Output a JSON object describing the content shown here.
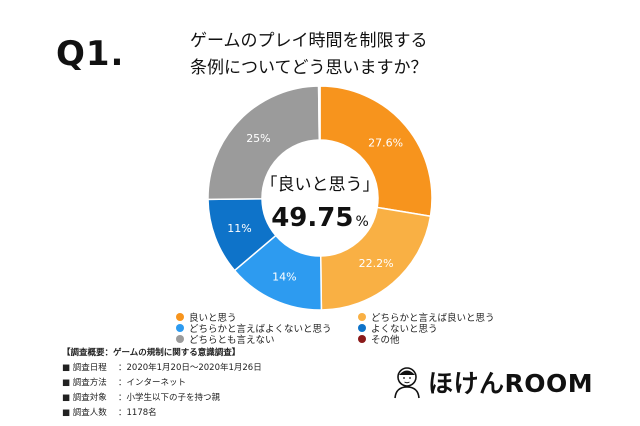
{
  "header": {
    "q_label": "Q1.",
    "question_line1": "ゲームのプレイ時間を制限する",
    "question_line2": "条例についてどう思いますか？"
  },
  "center": {
    "label": "「良いと思う」",
    "value": "49.75",
    "unit": "%"
  },
  "chart_data": {
    "type": "pie",
    "title": "ゲームのプレイ時間を制限する条例についてどう思いますか？",
    "slices": [
      {
        "name": "良いと思う",
        "value": 27.6,
        "label": "27.6%",
        "color": "#F7941D"
      },
      {
        "name": "どちらかと言えば良いと思う",
        "value": 22.2,
        "label": "22.2%",
        "color": "#F9B044"
      },
      {
        "name": "どちらかと言えばよくないと思う",
        "value": 14,
        "label": "14%",
        "color": "#2D9BF0"
      },
      {
        "name": "よくないと思う",
        "value": 11,
        "label": "11%",
        "color": "#0E73C9"
      },
      {
        "name": "どちらとも言えない",
        "value": 25,
        "label": "25%",
        "color": "#9B9B9B"
      },
      {
        "name": "その他",
        "value": 0.2,
        "label": "",
        "color": "#8B1A1A"
      }
    ]
  },
  "legend": {
    "items": [
      {
        "label": "良いと思う",
        "color": "#F7941D"
      },
      {
        "label": "どちらかと言えば良いと思う",
        "color": "#F9B044"
      },
      {
        "label": "どちらかと言えばよくないと思う",
        "color": "#2D9BF0"
      },
      {
        "label": "よくないと思う",
        "color": "#0E73C9"
      },
      {
        "label": "どちらとも言えない",
        "color": "#9B9B9B"
      },
      {
        "label": "その他",
        "color": "#8B1A1A"
      }
    ]
  },
  "survey": {
    "title": "【調査概要：ゲームの規制に関する意識調査】",
    "rows": [
      {
        "key": "■ 調査日程",
        "value": "：2020年1月20日〜2020年1月26日"
      },
      {
        "key": "■ 調査方法",
        "value": "：インターネット"
      },
      {
        "key": "■ 調査対象",
        "value": "：小学生以下の子を持つ親"
      },
      {
        "key": "■ 調査人数",
        "value": "：1178名"
      }
    ]
  },
  "brand": {
    "name": "ほけんROOM",
    "logo_icon": "person-portrait-icon"
  }
}
